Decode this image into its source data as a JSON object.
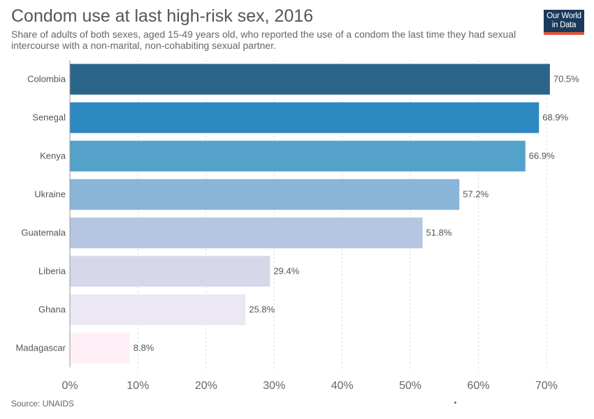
{
  "header": {
    "title": "Condom use at last high-risk sex, 2016",
    "subtitle": "Share of adults of both sexes, aged 15-49 years old, who reported the use of a condom the last time they had sexual intercourse with a non-marital, non-cohabiting sexual partner."
  },
  "logo": {
    "line1": "Our World",
    "line2": "in Data",
    "bg_color": "#1a3a5c",
    "bar_color": "#e4573c"
  },
  "footer": {
    "source": "Source: UNAIDS"
  },
  "chart_data": {
    "type": "bar",
    "orientation": "horizontal",
    "categories": [
      "Colombia",
      "Senegal",
      "Kenya",
      "Ukraine",
      "Guatemala",
      "Liberia",
      "Ghana",
      "Madagascar"
    ],
    "values": [
      70.5,
      68.9,
      66.9,
      57.2,
      51.8,
      29.4,
      25.8,
      8.8
    ],
    "value_labels": [
      "70.5%",
      "68.9%",
      "66.9%",
      "57.2%",
      "51.8%",
      "29.4%",
      "25.8%",
      "8.8%"
    ],
    "colors": [
      "#2a6589",
      "#2d87c0",
      "#54a1ca",
      "#8ab4d8",
      "#b4c6e2",
      "#d6d8ea",
      "#ebe8f3",
      "#fff0f7"
    ],
    "x_ticks": [
      0,
      10,
      20,
      30,
      40,
      50,
      60,
      70
    ],
    "x_tick_labels": [
      "0%",
      "10%",
      "20%",
      "30%",
      "40%",
      "50%",
      "60%",
      "70%"
    ],
    "xlim": [
      0,
      70
    ],
    "grid": true
  }
}
